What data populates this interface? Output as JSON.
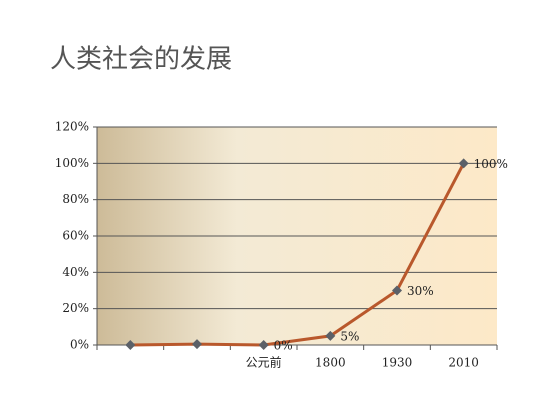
{
  "chart_data": {
    "type": "line",
    "title": "人类社会的发展",
    "categories": [
      null,
      null,
      "公元前",
      "1800",
      "1930",
      "2010"
    ],
    "series": [
      {
        "color": "#b9582c",
        "values": [
          0,
          0.5,
          0,
          5,
          30,
          100
        ],
        "value_labels": [
          null,
          null,
          "0%",
          "5%",
          "30%",
          "100%"
        ]
      }
    ],
    "ylim": [
      0,
      120
    ],
    "yticks": [
      {
        "value": 0,
        "label": "0%"
      },
      {
        "value": 20,
        "label": "20%"
      },
      {
        "value": 40,
        "label": "40%"
      },
      {
        "value": 60,
        "label": "60%"
      },
      {
        "value": 80,
        "label": "80%"
      },
      {
        "value": 100,
        "label": "100%"
      },
      {
        "value": 120,
        "label": "120%"
      }
    ],
    "grid": true
  }
}
